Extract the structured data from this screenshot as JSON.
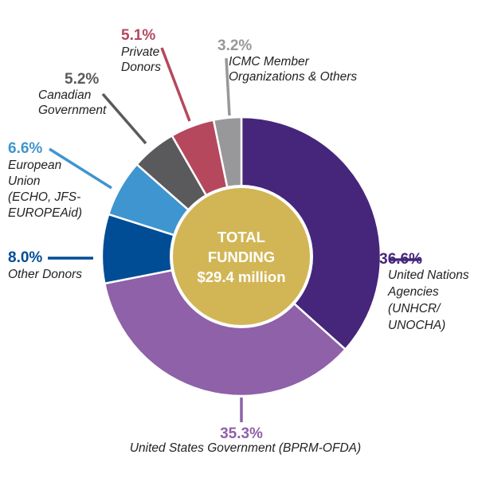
{
  "chart_data": {
    "type": "pie",
    "variant": "donut",
    "center_label": {
      "line1": "TOTAL",
      "line2": "FUNDING",
      "line3": "$29.4 million",
      "color": "#d2b656"
    },
    "slices": [
      {
        "label": "United Nations Agencies (UNHCR/ UNOCHA)",
        "pct_text": "36.6%",
        "value": 36.6,
        "color": "#45267a"
      },
      {
        "label": "United States Government (BPRM-OFDA)",
        "pct_text": "35.3%",
        "value": 35.3,
        "color": "#8f61a8"
      },
      {
        "label": "Other Donors",
        "pct_text": "8.0%",
        "value": 8.0,
        "color": "#004d96"
      },
      {
        "label": "European Union (ECHO, JFS-EUROPEAid)",
        "pct_text": "6.6%",
        "value": 6.6,
        "color": "#3f95cf"
      },
      {
        "label": "Canadian Government",
        "pct_text": "5.2%",
        "value": 5.2,
        "color": "#5a5a5c"
      },
      {
        "label": "Private Donors",
        "pct_text": "5.1%",
        "value": 5.1,
        "color": "#b5485d"
      },
      {
        "label": "ICMC Member Organizations & Others",
        "pct_text": "3.2%",
        "value": 3.2,
        "color": "#98989a"
      }
    ],
    "label_lines": [
      [
        "United Nations",
        "Agencies",
        "(UNHCR/",
        "UNOCHA)"
      ],
      [
        "United States Government (BPRM-OFDA)"
      ],
      [
        "Other Donors"
      ],
      [
        "European",
        "Union",
        "(ECHO, JFS-",
        "EUROPEAid)"
      ],
      [
        "Canadian",
        "Government"
      ],
      [
        "Private",
        "Donors"
      ],
      [
        "ICMC Member",
        "Organizations & Others"
      ]
    ]
  }
}
